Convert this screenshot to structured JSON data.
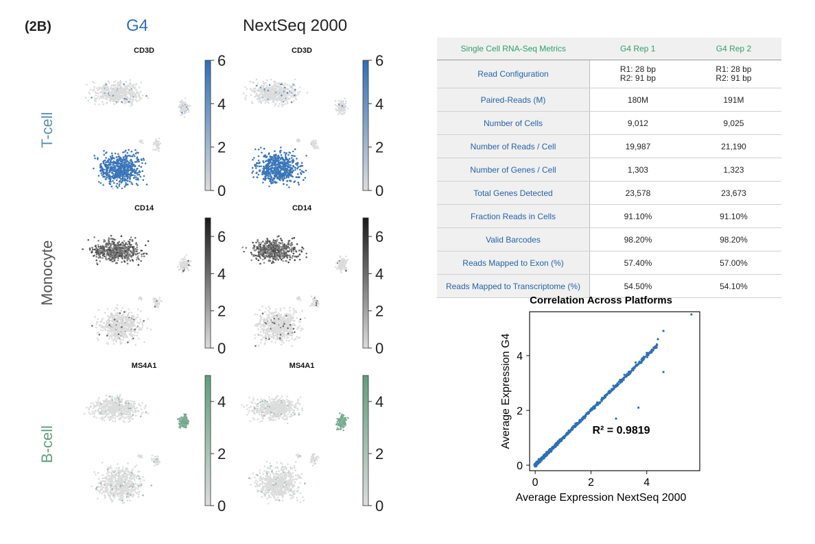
{
  "figure_label": "(2B)",
  "columns": {
    "left": "G4",
    "right": "NextSeq 2000"
  },
  "colors": {
    "g4_blue": "#2f6fb6",
    "bcell_green": "#5f9e7d",
    "tcell_label": "#5f8fb3",
    "monocyte_label": "#555555",
    "table_header_green": "#2e9e6b",
    "table_metric_blue": "#2563a8"
  },
  "rows": [
    {
      "label": "T-cell",
      "gene": "CD3D",
      "cbar_ticks": [
        "0",
        "2",
        "4",
        "6"
      ],
      "cbar_max": 6,
      "color": "#2f6fb6"
    },
    {
      "label": "Monocyte",
      "gene": "CD14",
      "cbar_ticks": [
        "0",
        "2",
        "4",
        "6"
      ],
      "cbar_max": 7,
      "color": "#1a1a1a"
    },
    {
      "label": "B-cell",
      "gene": "MS4A1",
      "cbar_ticks": [
        "0",
        "2",
        "4"
      ],
      "cbar_max": 5,
      "color": "#5f9e7d"
    }
  ],
  "table": {
    "headers": [
      "Single Cell RNA-Seq Metrics",
      "G4 Rep 1",
      "G4 Rep 2"
    ],
    "rows": [
      [
        "Read Configuration",
        "R1: 28 bp\nR2: 91 bp",
        "R1: 28 bp\nR2: 91 bp"
      ],
      [
        "Paired-Reads (M)",
        "180M",
        "191M"
      ],
      [
        "Number of Cells",
        "9,012",
        "9,025"
      ],
      [
        "Number of Reads / Cell",
        "19,987",
        "21,190"
      ],
      [
        "Number of Genes / Cell",
        "1,303",
        "1,323"
      ],
      [
        "Total Genes Detected",
        "23,578",
        "23,673"
      ],
      [
        "Fraction Reads in Cells",
        "91.10%",
        "91.10%"
      ],
      [
        "Valid Barcodes",
        "98.20%",
        "98.20%"
      ],
      [
        "Reads Mapped to Exon (%)",
        "57.40%",
        "57.00%"
      ],
      [
        "Reads Mapped to Transcriptome (%)",
        "54.50%",
        "54.10%"
      ]
    ]
  },
  "chart_data": {
    "type": "scatter",
    "title": "Correlation Across Platforms",
    "xlabel": "Average Expression NextSeq 2000",
    "ylabel": "Average Expression G4",
    "xlim": [
      -0.2,
      5.9
    ],
    "ylim": [
      -0.2,
      5.6
    ],
    "xticks": [
      0,
      2,
      4
    ],
    "yticks": [
      0,
      2,
      4
    ],
    "annotation": "R² = 0.9819",
    "r_squared": 0.9819,
    "points_sample": [
      [
        0.0,
        0.0
      ],
      [
        0.2,
        0.18
      ],
      [
        0.5,
        0.48
      ],
      [
        0.8,
        0.82
      ],
      [
        1.0,
        1.0
      ],
      [
        1.3,
        1.32
      ],
      [
        1.6,
        1.65
      ],
      [
        2.0,
        2.0
      ],
      [
        2.4,
        2.45
      ],
      [
        2.8,
        2.9
      ],
      [
        3.2,
        3.3
      ],
      [
        3.6,
        3.75
      ],
      [
        4.0,
        4.1
      ],
      [
        4.4,
        4.6
      ],
      [
        4.6,
        4.9
      ],
      [
        5.6,
        5.5
      ],
      [
        3.7,
        2.1
      ],
      [
        4.6,
        3.4
      ],
      [
        2.9,
        1.7
      ]
    ]
  }
}
